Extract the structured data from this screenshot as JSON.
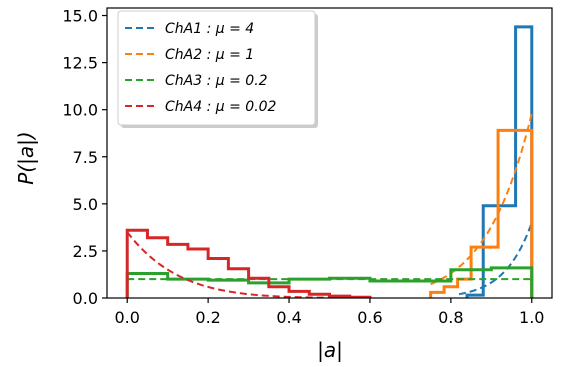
{
  "chart_data": {
    "type": "histogram",
    "xlabel": "|a|",
    "ylabel": "P(|a|)",
    "xlim": [
      -0.05,
      1.05
    ],
    "ylim": [
      0,
      15.4
    ],
    "xticks": [
      "0.0",
      "0.2",
      "0.4",
      "0.6",
      "0.8",
      "1.0"
    ],
    "yticks": [
      "0.0",
      "2.5",
      "5.0",
      "7.5",
      "10.0",
      "12.5",
      "15.0"
    ],
    "grid": false,
    "legend_position": "top-left",
    "series": [
      {
        "name": "ChA1 : μ = 4",
        "label_parts": [
          "ChA1",
          ": μ = 4"
        ],
        "color": "#1f77b4",
        "hist_edges": [
          0.84,
          0.88,
          0.92,
          0.96,
          1.0
        ],
        "hist_values": [
          0.15,
          4.9,
          4.9,
          14.4
        ],
        "fit_curve": "4*x^15"
      },
      {
        "name": "ChA2 : μ = 1",
        "label_parts": [
          "ChA2",
          ": μ = 1"
        ],
        "color": "#ff7f0e",
        "hist_edges": [
          0.75,
          0.7833,
          0.8167,
          0.85,
          0.8833,
          0.9167,
          0.95,
          1.0
        ],
        "hist_values": [
          0.3,
          0.6,
          1.0,
          2.7,
          2.7,
          8.9,
          8.9
        ],
        "fit_curve": "1*x^9"
      },
      {
        "name": "ChA3 : μ = 0.2",
        "label_parts": [
          "ChA3",
          ": μ = 0.2"
        ],
        "color": "#2ca02c",
        "hist_edges": [
          0.0,
          0.1,
          0.2,
          0.3,
          0.4,
          0.5,
          0.6,
          0.7,
          0.8,
          0.9,
          1.0
        ],
        "hist_values": [
          1.3,
          1.0,
          0.95,
          0.8,
          1.0,
          1.05,
          0.9,
          0.9,
          1.5,
          1.6
        ],
        "fit_curve": "constant 1.0"
      },
      {
        "name": "ChA4 : μ = 0.02",
        "label_parts": [
          "ChA4",
          ": μ = 0.02"
        ],
        "color": "#d62728",
        "hist_edges": [
          0.0,
          0.05,
          0.1,
          0.15,
          0.2,
          0.25,
          0.3,
          0.35,
          0.4,
          0.45,
          0.5,
          0.55,
          0.6
        ],
        "hist_values": [
          3.6,
          3.2,
          2.85,
          2.6,
          2.1,
          1.55,
          1.05,
          0.6,
          0.35,
          0.2,
          0.1,
          0.04
        ],
        "fit_curve": "3.5*(1-x)^(8)"
      }
    ]
  }
}
